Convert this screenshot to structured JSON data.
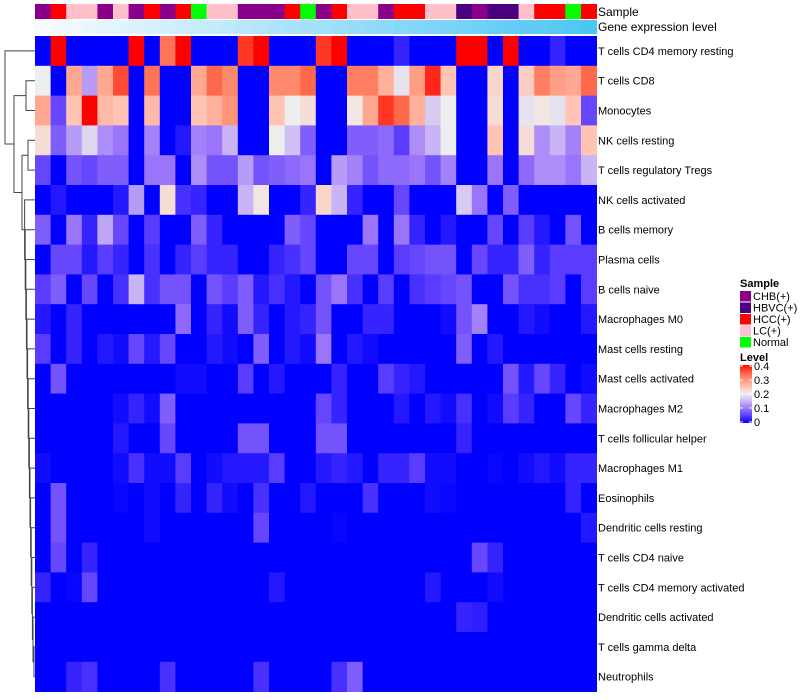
{
  "chart_data": {
    "type": "heatmap",
    "title": "",
    "annotation_labels": {
      "sample": "Sample",
      "gene": "Gene expression level"
    },
    "rows": [
      "T cells CD4 memory resting",
      "T cells CD8",
      "Monocytes",
      "NK cells resting",
      "T cells regulatory  Tregs",
      "NK cells activated",
      "B cells memory",
      "Plasma cells",
      "B cells naive",
      "Macrophages M0",
      "Mast cells resting",
      "Mast cells activated",
      "Macrophages M2",
      "T cells follicular helper",
      "Macrophages M1",
      "Eosinophils",
      "Dendritic cells resting",
      "T cells CD4 naive",
      "T cells CD4 memory activated",
      "Dendritic cells activated",
      "T cells gamma delta",
      "Neutrophils"
    ],
    "sample_groups": [
      "CHB",
      "HCC",
      "LC",
      "LC",
      "CHB",
      "LC",
      "CHB",
      "HCC",
      "CHB",
      "HCC",
      "Normal",
      "LC",
      "LC",
      "CHB",
      "CHB",
      "CHB",
      "HCC",
      "Normal",
      "CHB",
      "HCC",
      "LC",
      "LC",
      "CHB",
      "HCC",
      "HCC",
      "LC",
      "LC",
      "HBVC",
      "CHB",
      "HBVC",
      "HBVC",
      "LC",
      "HCC",
      "HCC",
      "Normal",
      "HCC"
    ],
    "gene_expression_level": [
      0.0,
      0.03,
      0.06,
      0.09,
      0.11,
      0.14,
      0.17,
      0.2,
      0.23,
      0.26,
      0.29,
      0.31,
      0.34,
      0.37,
      0.4,
      0.43,
      0.46,
      0.49,
      0.51,
      0.54,
      0.57,
      0.6,
      0.63,
      0.66,
      0.69,
      0.71,
      0.74,
      0.77,
      0.8,
      0.83,
      0.86,
      0.89,
      0.91,
      0.94,
      0.97,
      1.0
    ],
    "values": [
      [
        0,
        0.4,
        0,
        0,
        0,
        0,
        0.4,
        0,
        0.33,
        0.4,
        0,
        0,
        0,
        0.37,
        0.4,
        0,
        0,
        0,
        0.37,
        0.4,
        0,
        0,
        0,
        0.03,
        0,
        0,
        0,
        0.4,
        0.4,
        0,
        0.4,
        0,
        0,
        0.03,
        0,
        0
      ],
      [
        0.2,
        0,
        0.28,
        0.13,
        0.28,
        0.36,
        0,
        0.33,
        0,
        0,
        0.28,
        0.34,
        0.31,
        0,
        0,
        0.31,
        0.31,
        0.34,
        0,
        0,
        0.32,
        0.32,
        0.27,
        0.19,
        0.29,
        0.38,
        0.25,
        0,
        0,
        0.23,
        0,
        0.24,
        0.32,
        0.29,
        0.28,
        0.34
      ],
      [
        0.28,
        0.06,
        0.25,
        0.4,
        0.26,
        0.25,
        0,
        0.26,
        0,
        0,
        0.25,
        0.27,
        0.3,
        0,
        0,
        0.25,
        0.2,
        0.22,
        0,
        0,
        0.21,
        0.28,
        0.37,
        0.34,
        0.27,
        0.17,
        0.2,
        0,
        0,
        0.22,
        0,
        0.19,
        0.21,
        0.19,
        0.25,
        0.06
      ],
      [
        0.22,
        0.08,
        0.13,
        0.18,
        0.12,
        0.1,
        0,
        0.11,
        0,
        0.02,
        0.11,
        0.1,
        0.15,
        0,
        0,
        0.2,
        0.16,
        0.08,
        0,
        0,
        0.08,
        0.08,
        0.09,
        0.05,
        0.12,
        0.15,
        0.2,
        0,
        0,
        0.25,
        0,
        0.22,
        0.12,
        0.15,
        0.11,
        0.25
      ],
      [
        0.06,
        0,
        0.07,
        0.06,
        0.08,
        0.08,
        0,
        0.1,
        0.1,
        0,
        0.12,
        0.07,
        0.07,
        0.13,
        0.07,
        0.08,
        0.09,
        0.1,
        0,
        0.13,
        0.11,
        0.07,
        0.09,
        0.09,
        0.1,
        0.07,
        0.11,
        0,
        0,
        0.1,
        0,
        0.09,
        0.12,
        0.12,
        0.1,
        0.15
      ],
      [
        0,
        0.02,
        0,
        0,
        0,
        0.02,
        0.13,
        0,
        0.22,
        0.04,
        0.03,
        0,
        0,
        0.15,
        0.21,
        0,
        0,
        0.03,
        0.23,
        0.15,
        0.03,
        0,
        0,
        0.06,
        0,
        0,
        0,
        0.17,
        0.1,
        0,
        0.08,
        0,
        0,
        0,
        0,
        0
      ],
      [
        0.08,
        0,
        0.1,
        0.03,
        0.14,
        0.06,
        0,
        0.05,
        0,
        0,
        0.08,
        0.03,
        0,
        0,
        0,
        0,
        0.08,
        0.06,
        0,
        0,
        0,
        0.1,
        0,
        0.1,
        0.03,
        0,
        0.02,
        0,
        0,
        0.06,
        0,
        0.05,
        0.02,
        0,
        0.07,
        0
      ],
      [
        0,
        0.06,
        0.06,
        0.02,
        0.05,
        0.03,
        0,
        0.04,
        0,
        0.03,
        0.05,
        0.03,
        0.03,
        0,
        0,
        0.03,
        0.04,
        0.06,
        0,
        0,
        0.06,
        0.06,
        0,
        0.05,
        0.06,
        0.07,
        0.07,
        0,
        0.06,
        0.03,
        0.03,
        0.08,
        0.03,
        0.05,
        0.05,
        0.05
      ],
      [
        0.05,
        0.08,
        0,
        0.06,
        0,
        0.04,
        0.15,
        0.04,
        0.07,
        0.07,
        0,
        0.07,
        0.05,
        0.08,
        0.02,
        0.04,
        0.02,
        0,
        0.07,
        0.1,
        0.04,
        0,
        0.05,
        0,
        0.04,
        0.05,
        0.06,
        0.07,
        0,
        0,
        0.07,
        0.04,
        0.04,
        0.05,
        0,
        0.05
      ],
      [
        0.02,
        0,
        0.03,
        0,
        0,
        0,
        0,
        0,
        0,
        0.09,
        0,
        0.03,
        0.01,
        0.08,
        0.03,
        0,
        0.02,
        0.03,
        0.07,
        0,
        0,
        0.03,
        0.03,
        0,
        0,
        0,
        0.01,
        0.07,
        0.11,
        0,
        0,
        0.02,
        0.01,
        0,
        0,
        0.02
      ],
      [
        0.05,
        0,
        0.03,
        0,
        0.02,
        0.01,
        0.06,
        0.02,
        0.06,
        0,
        0,
        0.02,
        0.01,
        0,
        0.08,
        0,
        0.02,
        0.01,
        0.1,
        0,
        0.02,
        0.01,
        0,
        0,
        0,
        0,
        0,
        0.08,
        0,
        0.02,
        0,
        0,
        0,
        0,
        0,
        0
      ],
      [
        0,
        0.07,
        0,
        0,
        0,
        0,
        0,
        0,
        0,
        0.01,
        0.01,
        0,
        0,
        0.05,
        0,
        0.02,
        0,
        0,
        0,
        0.03,
        0,
        0,
        0.05,
        0.03,
        0.02,
        0,
        0,
        0,
        0,
        0,
        0.07,
        0.02,
        0.06,
        0.03,
        0,
        0.01
      ],
      [
        0,
        0,
        0,
        0,
        0,
        0.01,
        0.03,
        0.01,
        0.08,
        0,
        0,
        0,
        0,
        0,
        0,
        0,
        0,
        0,
        0.06,
        0.03,
        0,
        0,
        0,
        0.02,
        0,
        0.02,
        0.01,
        0.04,
        0,
        0.01,
        0.05,
        0.03,
        0,
        0,
        0.06,
        0.03
      ],
      [
        0,
        0,
        0,
        0,
        0,
        0.02,
        0,
        0,
        0.06,
        0,
        0,
        0,
        0,
        0.07,
        0.07,
        0,
        0,
        0,
        0.07,
        0.07,
        0,
        0,
        0,
        0,
        0,
        0,
        0,
        0.03,
        0,
        0,
        0,
        0,
        0,
        0,
        0,
        0
      ],
      [
        0.01,
        0,
        0,
        0,
        0,
        0.01,
        0.04,
        0.01,
        0.01,
        0.05,
        0,
        0.01,
        0.02,
        0.02,
        0.02,
        0.05,
        0,
        0,
        0.02,
        0.03,
        0.02,
        0,
        0.03,
        0.03,
        0.05,
        0.01,
        0.01,
        0,
        0,
        0.005,
        0,
        0.01,
        0.02,
        0.01,
        0.03,
        0.03
      ],
      [
        0,
        0.07,
        0,
        0,
        0,
        0.005,
        0,
        0.01,
        0,
        0.03,
        0,
        0.03,
        0.01,
        0,
        0.04,
        0,
        0,
        0.02,
        0,
        0,
        0,
        0.04,
        0,
        0,
        0,
        0.01,
        0.005,
        0,
        0,
        0,
        0,
        0,
        0,
        0,
        0.03,
        0
      ],
      [
        0,
        0.07,
        0,
        0,
        0,
        0,
        0,
        0.01,
        0,
        0,
        0,
        0,
        0,
        0,
        0.06,
        0,
        0,
        0,
        0,
        0.005,
        0,
        0,
        0,
        0,
        0,
        0,
        0,
        0,
        0,
        0,
        0,
        0,
        0,
        0,
        0,
        0.02
      ],
      [
        0,
        0.06,
        0,
        0.03,
        0,
        0,
        0,
        0,
        0,
        0,
        0,
        0,
        0,
        0,
        0,
        0,
        0,
        0,
        0,
        0,
        0,
        0,
        0,
        0,
        0,
        0,
        0,
        0,
        0.06,
        0.03,
        0,
        0,
        0,
        0,
        0,
        0
      ],
      [
        0.03,
        0,
        0.005,
        0.06,
        0,
        0,
        0,
        0,
        0,
        0,
        0,
        0,
        0,
        0,
        0,
        0.02,
        0,
        0,
        0,
        0,
        0,
        0,
        0,
        0,
        0,
        0.02,
        0,
        0,
        0,
        0.01,
        0,
        0,
        0,
        0,
        0,
        0
      ],
      [
        0,
        0,
        0,
        0,
        0,
        0,
        0,
        0,
        0,
        0,
        0,
        0,
        0,
        0,
        0,
        0,
        0,
        0,
        0,
        0,
        0,
        0,
        0,
        0,
        0,
        0,
        0,
        0.03,
        0.025,
        0,
        0,
        0,
        0,
        0,
        0,
        0
      ],
      [
        0,
        0,
        0,
        0,
        0,
        0,
        0,
        0,
        0,
        0,
        0,
        0,
        0,
        0,
        0,
        0,
        0,
        0,
        0,
        0,
        0,
        0,
        0,
        0,
        0,
        0,
        0,
        0,
        0,
        0,
        0,
        0,
        0,
        0,
        0,
        0
      ],
      [
        0,
        0,
        0.03,
        0.04,
        0,
        0,
        0,
        0,
        0.04,
        0,
        0,
        0,
        0,
        0,
        0.04,
        0,
        0,
        0,
        0,
        0.04,
        0.08,
        0,
        0,
        0,
        0,
        0,
        0,
        0,
        0,
        0,
        0,
        0,
        0,
        0,
        0,
        0
      ]
    ],
    "color_range": [
      0,
      0.4
    ],
    "legend": {
      "sample_title": "Sample",
      "sample_entries": [
        {
          "label": "CHB(+)",
          "key": "CHB",
          "color": "#8B008B"
        },
        {
          "label": "HBVC(+)",
          "key": "HBVC",
          "color": "#4B0082"
        },
        {
          "label": "HCC(+)",
          "key": "HCC",
          "color": "#FF0000"
        },
        {
          "label": "LC(+)",
          "key": "LC",
          "color": "#FFC0CB"
        },
        {
          "label": "Normal",
          "key": "Normal",
          "color": "#00FF00"
        }
      ],
      "level_title": "Level",
      "level_ticks": [
        "0.4",
        "0.3",
        "0.2",
        "0.1",
        "0"
      ],
      "placement": "right"
    },
    "colors": {
      "low": "#0000FF",
      "mid": "#EEEEEE",
      "high": "#FF0000",
      "gene_low": "#F8FBFE",
      "gene_high": "#4DC6F4"
    }
  }
}
